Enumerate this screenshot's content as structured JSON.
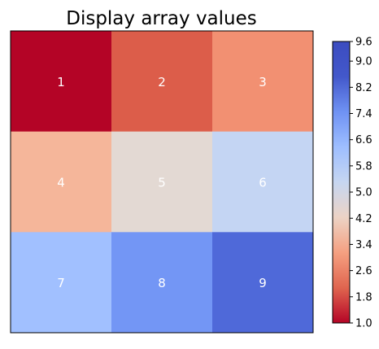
{
  "chart_data": {
    "type": "heatmap",
    "title": "Display array values",
    "xlabel": "",
    "ylabel": "",
    "colormap": "coolwarm_r",
    "rows": 3,
    "cols": 3,
    "values": [
      [
        1,
        2,
        3
      ],
      [
        4,
        5,
        6
      ],
      [
        7,
        8,
        9
      ]
    ],
    "cell_labels": [
      [
        "1",
        "2",
        "3"
      ],
      [
        "4",
        "5",
        "6"
      ],
      [
        "7",
        "8",
        "9"
      ]
    ],
    "cell_colors": [
      [
        "#b40426",
        "#dc5d4a",
        "#f29072"
      ],
      [
        "#f5b69a",
        "#e3d9d3",
        "#c4d5f3"
      ],
      [
        "#a1c0ff",
        "#7396f5",
        "#4f69d9"
      ]
    ],
    "empty_row_note": "",
    "colorbar": {
      "min": 1.0,
      "max": 9.6,
      "ticks": [
        "1.0",
        "1.8",
        "2.6",
        "3.4",
        "4.2",
        "5.0",
        "5.8",
        "6.6",
        "7.4",
        "8.2",
        "9.0",
        "9.6"
      ],
      "tick_values": [
        1.0,
        1.8,
        2.6,
        3.4,
        4.2,
        5.0,
        5.8,
        6.6,
        7.4,
        8.2,
        9.0,
        9.6
      ],
      "color_stops": [
        "#b40426",
        "#e0654f",
        "#f5a081",
        "#ecd3c5",
        "#c6d6f1",
        "#9ebeff",
        "#6f92f3",
        "#4358cb",
        "#3b4cc0"
      ]
    },
    "grid": false,
    "legend": "colorbar-right"
  }
}
